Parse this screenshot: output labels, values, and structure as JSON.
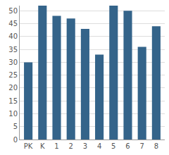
{
  "chart_data": {
    "type": "bar",
    "categories": [
      "PK",
      "K",
      "1",
      "2",
      "3",
      "4",
      "5",
      "6",
      "7",
      "8"
    ],
    "values": [
      30,
      52,
      48,
      47,
      43,
      33,
      52,
      50,
      36,
      44
    ],
    "color": "#34648a",
    "ylim": [
      0,
      52
    ],
    "yticks": [
      0,
      5,
      10,
      15,
      20,
      25,
      30,
      35,
      40,
      45,
      50
    ],
    "grid": true
  }
}
